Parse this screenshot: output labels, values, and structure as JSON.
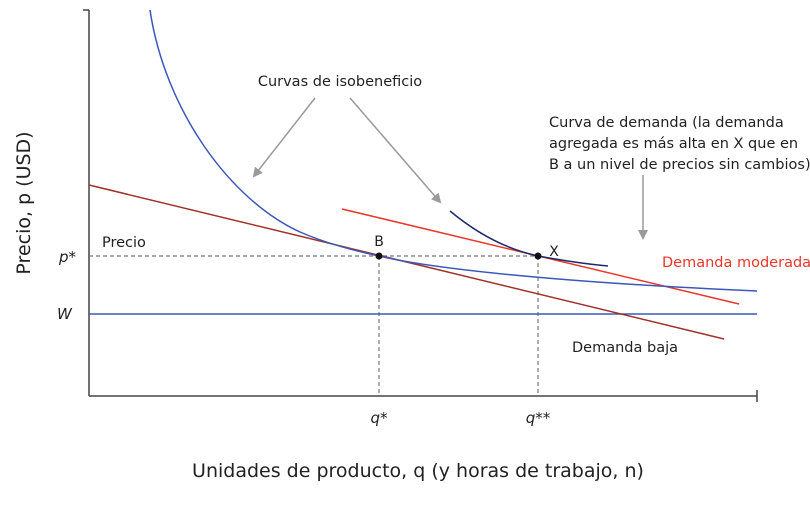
{
  "chart_data": {
    "type": "line",
    "ylabel": "Precio, p (USD)",
    "xlabel": "Unidades de producto, q (y horas de trabajo, n)",
    "xticks": [
      "q*",
      "q**"
    ],
    "yticks": [
      "p*",
      "W"
    ],
    "series": [
      {
        "name": "Demanda baja",
        "color": "#a0302a",
        "x": [
          0,
          0.89
        ],
        "y": [
          0.555,
          0.11
        ]
      },
      {
        "name": "Demanda moderada",
        "color": "#e8372b",
        "x": [
          0.34,
          0.87
        ],
        "y": [
          0.495,
          0.245
        ]
      },
      {
        "name": "W",
        "color": "#3b58b8",
        "x": [
          0,
          1
        ],
        "y": [
          0.27,
          0.27
        ]
      },
      {
        "name": "Curva de isobeneficio (baja)",
        "color": "#3b58b8",
        "x": [
          0.09,
          0.12,
          0.16,
          0.2,
          0.25,
          0.3,
          0.35,
          0.38,
          0.45,
          0.55,
          0.65,
          0.75,
          0.85,
          0.95,
          1.0
        ],
        "y": [
          1.0,
          0.85,
          0.71,
          0.61,
          0.52,
          0.45,
          0.4,
          0.375,
          0.35,
          0.33,
          0.315,
          0.3,
          0.295,
          0.29,
          0.28
        ]
      },
      {
        "name": "Curva de isobeneficio (moderada)",
        "color": "#1e2a6b",
        "x": [
          0.36,
          0.4,
          0.45,
          0.5,
          0.54,
          0.58,
          0.62,
          0.66,
          0.69
        ],
        "y": [
          0.495,
          0.46,
          0.43,
          0.405,
          0.385,
          0.37,
          0.36,
          0.355,
          0.355
        ]
      }
    ],
    "points": [
      {
        "label": "B",
        "x": 0.38,
        "y": 0.375
      },
      {
        "label": "X",
        "x": 0.54,
        "y": 0.375
      }
    ],
    "annotations": {
      "isobeneficio": "Curvas de isobeneficio",
      "demanda_lines": [
        "Curva de demanda (la demanda",
        "agregada es más alta en X que en",
        "B a un nivel de precios sin cambios)"
      ],
      "demanda_moderada": "Demanda moderada",
      "demanda_baja": "Demanda baja",
      "precio": "Precio"
    }
  }
}
